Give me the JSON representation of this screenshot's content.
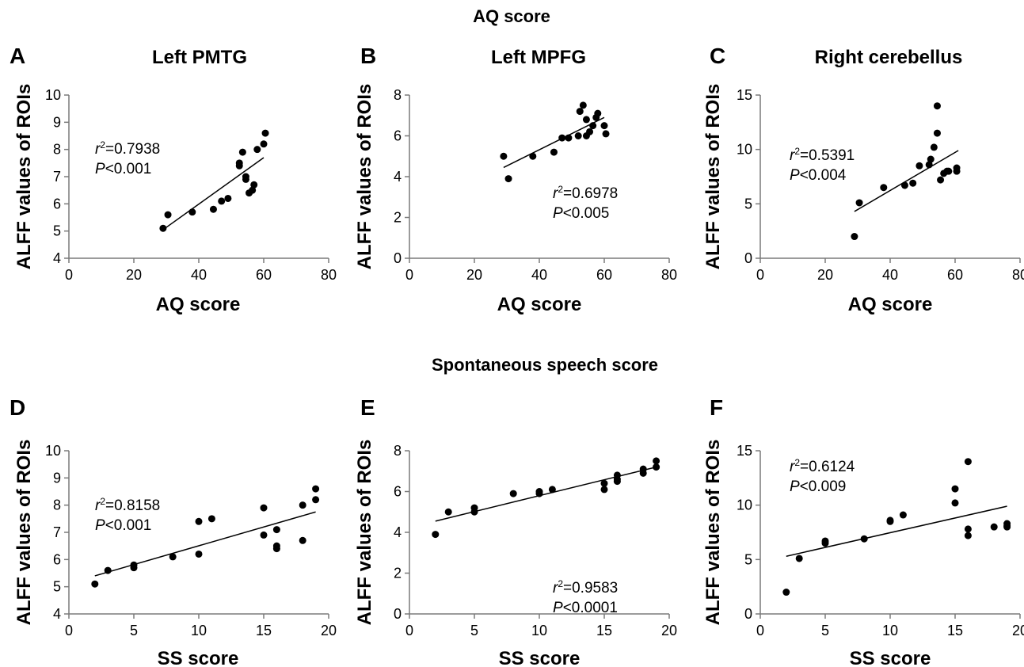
{
  "sections": [
    "AQ score",
    "Spontaneous speech score"
  ],
  "chart_data": [
    {
      "type": "scatter",
      "letter": "A",
      "title": "Left PMTG",
      "xlabel": "AQ score",
      "ylabel": "ALFF values of ROIs",
      "xlim": [
        0,
        80
      ],
      "ylim": [
        4,
        10
      ],
      "xticks": [
        0,
        20,
        40,
        60,
        80
      ],
      "yticks": [
        4,
        5,
        6,
        7,
        8,
        9,
        10
      ],
      "points": [
        [
          29,
          5.1
        ],
        [
          30.5,
          5.6
        ],
        [
          38,
          5.7
        ],
        [
          44.5,
          5.8
        ],
        [
          47,
          6.1
        ],
        [
          49,
          6.2
        ],
        [
          52.5,
          7.4
        ],
        [
          52.5,
          7.5
        ],
        [
          53.5,
          7.9
        ],
        [
          54.5,
          7.0
        ],
        [
          54.5,
          6.9
        ],
        [
          55.5,
          6.4
        ],
        [
          56.5,
          6.5
        ],
        [
          57,
          6.7
        ],
        [
          58,
          8.0
        ],
        [
          60,
          8.2
        ],
        [
          60.5,
          8.6
        ]
      ],
      "trendline": [
        [
          29,
          5.05
        ],
        [
          60,
          7.7
        ]
      ],
      "annotation": {
        "r2": "=0.7938",
        "p": "<0.001"
      },
      "grid": false
    },
    {
      "type": "scatter",
      "letter": "B",
      "title": "Left MPFG",
      "xlabel": "AQ score",
      "ylabel": "ALFF values of ROIs",
      "xlim": [
        0,
        80
      ],
      "ylim": [
        0,
        8
      ],
      "xticks": [
        0,
        20,
        40,
        60,
        80
      ],
      "yticks": [
        0,
        2,
        4,
        6,
        8
      ],
      "points": [
        [
          29,
          5.0
        ],
        [
          30.5,
          3.9
        ],
        [
          38,
          5.0
        ],
        [
          44.5,
          5.2
        ],
        [
          47,
          5.9
        ],
        [
          49,
          5.9
        ],
        [
          52,
          6.0
        ],
        [
          52.5,
          7.2
        ],
        [
          53.5,
          7.5
        ],
        [
          54.5,
          6.0
        ],
        [
          54.5,
          6.8
        ],
        [
          55.5,
          6.2
        ],
        [
          56.5,
          6.5
        ],
        [
          57.5,
          6.9
        ],
        [
          58,
          7.1
        ],
        [
          60,
          6.5
        ],
        [
          60.5,
          6.1
        ]
      ],
      "trendline": [
        [
          29,
          4.45
        ],
        [
          60,
          6.9
        ]
      ],
      "annotation": {
        "r2": "=0.6978",
        "p": "<0.005"
      },
      "grid": false
    },
    {
      "type": "scatter",
      "letter": "C",
      "title": "Right cerebellus",
      "xlabel": "AQ score",
      "ylabel": "ALFF values of ROIs",
      "xlim": [
        0,
        80
      ],
      "ylim": [
        0,
        15
      ],
      "xticks": [
        0,
        20,
        40,
        60,
        80
      ],
      "yticks": [
        0,
        5,
        10,
        15
      ],
      "points": [
        [
          29,
          2.0
        ],
        [
          30.5,
          5.1
        ],
        [
          38,
          6.5
        ],
        [
          44.5,
          6.7
        ],
        [
          47,
          6.9
        ],
        [
          49,
          8.5
        ],
        [
          52,
          8.6
        ],
        [
          52.5,
          9.1
        ],
        [
          53.5,
          10.2
        ],
        [
          54.5,
          11.5
        ],
        [
          54.5,
          14.0
        ],
        [
          55.5,
          7.2
        ],
        [
          56.5,
          7.8
        ],
        [
          57.5,
          8.0
        ],
        [
          58,
          8.0
        ],
        [
          60.5,
          8.0
        ],
        [
          60.5,
          8.3
        ]
      ],
      "trendline": [
        [
          29,
          4.3
        ],
        [
          61,
          9.9
        ]
      ],
      "annotation": {
        "r2": "=0.5391",
        "p": "<0.004"
      },
      "grid": false
    },
    {
      "type": "scatter",
      "letter": "D",
      "title": "",
      "xlabel": "SS score",
      "ylabel": "ALFF values of ROIs",
      "xlim": [
        0,
        20
      ],
      "ylim": [
        4,
        10
      ],
      "xticks": [
        0,
        5,
        10,
        15,
        20
      ],
      "yticks": [
        4,
        5,
        6,
        7,
        8,
        9,
        10
      ],
      "points": [
        [
          2,
          5.1
        ],
        [
          3,
          5.6
        ],
        [
          5,
          5.7
        ],
        [
          5,
          5.8
        ],
        [
          8,
          6.1
        ],
        [
          10,
          7.4
        ],
        [
          10,
          6.2
        ],
        [
          11,
          7.5
        ],
        [
          15,
          7.9
        ],
        [
          15,
          6.9
        ],
        [
          16,
          7.1
        ],
        [
          16,
          6.5
        ],
        [
          16,
          6.4
        ],
        [
          18,
          8.0
        ],
        [
          18,
          6.7
        ],
        [
          19,
          8.6
        ],
        [
          19,
          8.2
        ]
      ],
      "trendline": [
        [
          2,
          5.4
        ],
        [
          19,
          7.75
        ]
      ],
      "annotation": {
        "r2": "=0.8158",
        "p": "<0.001"
      },
      "grid": false
    },
    {
      "type": "scatter",
      "letter": "E",
      "title": "",
      "xlabel": "SS score",
      "ylabel": "ALFF values of ROIs",
      "xlim": [
        0,
        20
      ],
      "ylim": [
        0,
        8
      ],
      "xticks": [
        0,
        5,
        10,
        15,
        20
      ],
      "yticks": [
        0,
        2,
        4,
        6,
        8
      ],
      "points": [
        [
          2,
          3.9
        ],
        [
          3,
          5.0
        ],
        [
          5,
          5.0
        ],
        [
          5,
          5.2
        ],
        [
          8,
          5.9
        ],
        [
          10,
          5.9
        ],
        [
          10,
          6.0
        ],
        [
          11,
          6.1
        ],
        [
          15,
          6.1
        ],
        [
          15,
          6.4
        ],
        [
          16,
          6.5
        ],
        [
          16,
          6.6
        ],
        [
          16,
          6.8
        ],
        [
          18,
          6.9
        ],
        [
          18,
          7.1
        ],
        [
          19,
          7.2
        ],
        [
          19,
          7.5
        ]
      ],
      "trendline": [
        [
          2,
          4.55
        ],
        [
          19,
          7.2
        ]
      ],
      "annotation": {
        "r2": "=0.9583",
        "p": "<0.0001"
      },
      "grid": false
    },
    {
      "type": "scatter",
      "letter": "F",
      "title": "",
      "xlabel": "SS score",
      "ylabel": "ALFF values of ROIs",
      "xlim": [
        0,
        20
      ],
      "ylim": [
        0,
        15
      ],
      "xticks": [
        0,
        5,
        10,
        15,
        20
      ],
      "yticks": [
        0,
        5,
        10,
        15
      ],
      "points": [
        [
          2,
          2.0
        ],
        [
          3,
          5.1
        ],
        [
          5,
          6.5
        ],
        [
          5,
          6.7
        ],
        [
          8,
          6.9
        ],
        [
          10,
          8.5
        ],
        [
          10,
          8.6
        ],
        [
          11,
          9.1
        ],
        [
          15,
          10.2
        ],
        [
          15,
          11.5
        ],
        [
          16,
          14.0
        ],
        [
          16,
          7.2
        ],
        [
          16,
          7.8
        ],
        [
          18,
          8.0
        ],
        [
          19,
          8.0
        ],
        [
          19,
          8.3
        ],
        [
          19,
          8.1
        ]
      ],
      "trendline": [
        [
          2,
          5.3
        ],
        [
          19,
          9.9
        ]
      ],
      "annotation": {
        "r2": "=0.6124",
        "p": "<0.009"
      },
      "grid": false
    }
  ]
}
